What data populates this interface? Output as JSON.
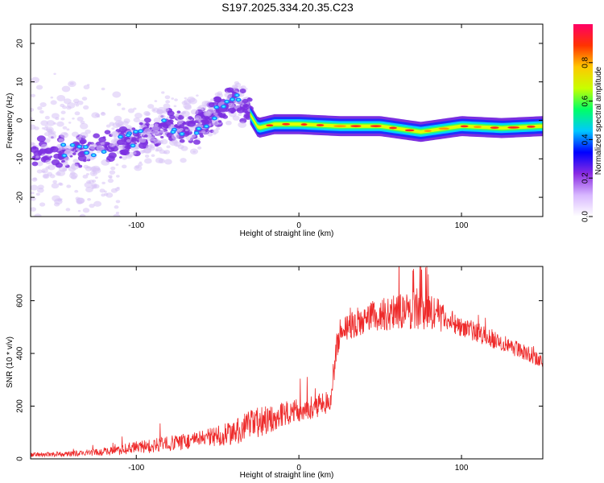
{
  "title": "S197.2025.334.20.35.C23",
  "colors": {
    "line": "#ee2a2a",
    "cloud": "#7b2fe0",
    "cloudLight": "#d7c2f5"
  },
  "chart_data": [
    {
      "type": "heatmap",
      "name": "spectrogram",
      "xlabel": "Height of straight line (km)",
      "ylabel": "Frequency (Hz)",
      "xlim": [
        -165,
        150
      ],
      "ylim": [
        -25,
        25
      ],
      "xticks": [
        -100,
        0,
        100
      ],
      "yticks": [
        -20,
        -10,
        0,
        10,
        20
      ],
      "colorbar": {
        "label": "Normalized spectral amplitude",
        "range": [
          0,
          1
        ],
        "ticks": [
          "0.0",
          "0.2",
          "0.4",
          "0.6",
          "0.8"
        ],
        "stops": [
          "#ffffff",
          "#d8b8ff",
          "#8a2be2",
          "#0000ff",
          "#00c8ff",
          "#00ff66",
          "#c8ff00",
          "#ffc800",
          "#ff3300",
          "#ff0066"
        ]
      },
      "ridge": {
        "x": [
          -150,
          -130,
          -110,
          -95,
          -80,
          -65,
          -50,
          -40,
          -32,
          -25,
          -15,
          0,
          25,
          50,
          75,
          100,
          125,
          150
        ],
        "freq": [
          -8,
          -8,
          -6,
          -4,
          -1,
          -3,
          2,
          6,
          3,
          -2,
          -1,
          -1,
          -1.5,
          -1.5,
          -3,
          -1.5,
          -2,
          -1.5
        ]
      }
    },
    {
      "type": "line",
      "name": "snr",
      "xlabel": "Height of straight line (km)",
      "ylabel": "SNR (10 * v/v)",
      "xlim": [
        -165,
        150
      ],
      "ylim": [
        0,
        730
      ],
      "xticks": [
        -100,
        0,
        100
      ],
      "yticks": [
        0,
        200,
        400,
        600
      ],
      "envelope": {
        "x": [
          -165,
          -140,
          -120,
          -100,
          -80,
          -60,
          -40,
          -30,
          -20,
          -10,
          0,
          10,
          20,
          23,
          26,
          35,
          50,
          70,
          80,
          100,
          120,
          140,
          150
        ],
        "y": [
          15,
          18,
          25,
          40,
          55,
          70,
          95,
          120,
          140,
          165,
          180,
          195,
          215,
          420,
          490,
          510,
          540,
          555,
          550,
          500,
          450,
          400,
          360
        ],
        "amp": [
          8,
          10,
          15,
          25,
          30,
          35,
          45,
          60,
          55,
          45,
          45,
          45,
          40,
          50,
          50,
          55,
          65,
          75,
          75,
          40,
          35,
          30,
          25
        ]
      }
    }
  ]
}
